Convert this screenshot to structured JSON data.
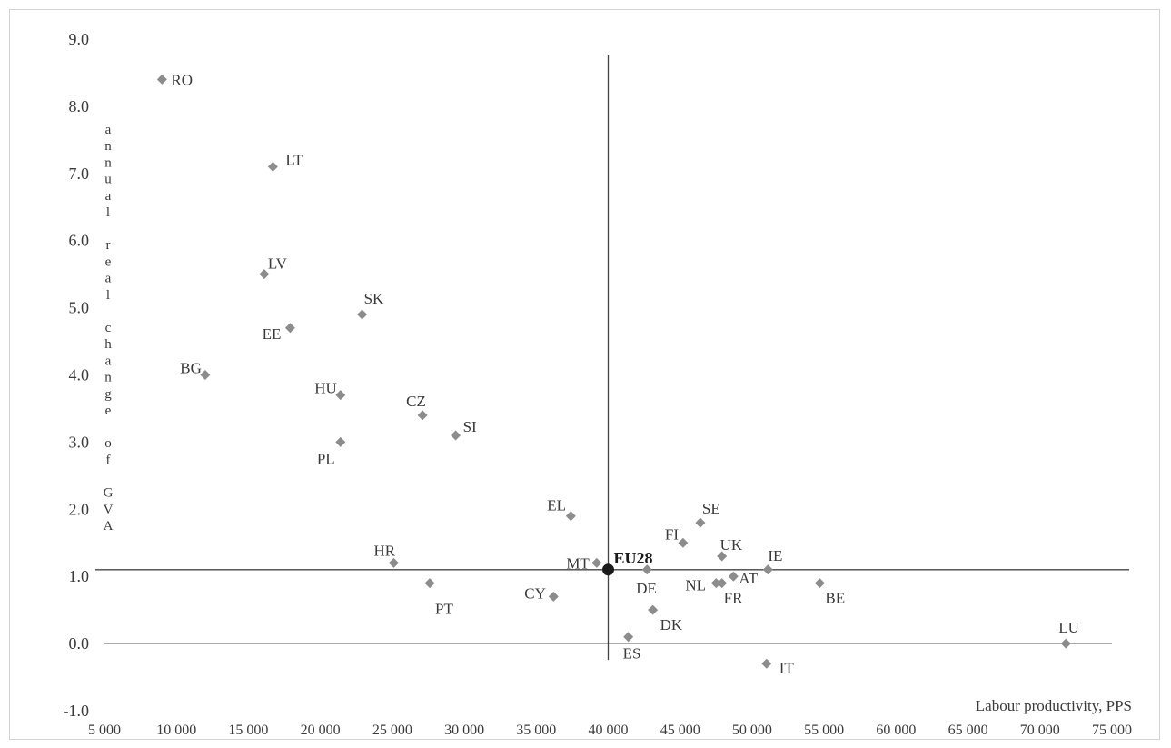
{
  "chart_data": {
    "type": "scatter",
    "title": "",
    "xlabel": "Labour productivity, PPS",
    "ylabel": "annual real change of GVA",
    "xlim": [
      5000,
      75000
    ],
    "ylim": [
      -1.0,
      9.0
    ],
    "xticks": [
      "5 000",
      "10 000",
      "15 000",
      "20 000",
      "25 000",
      "30 000",
      "35 000",
      "40 000",
      "45 000",
      "50 000",
      "55 000",
      "60 000",
      "65 000",
      "70 000",
      "75 000"
    ],
    "yticks": [
      "-1.0",
      "0.0",
      "1.0",
      "2.0",
      "3.0",
      "4.0",
      "5.0",
      "6.0",
      "7.0",
      "8.0",
      "9.0"
    ],
    "grid": false,
    "reference_point": {
      "label": "EU28",
      "x": 40000,
      "y": 1.1
    },
    "points": [
      {
        "label": "RO",
        "x": 9000,
        "y": 8.4
      },
      {
        "label": "LT",
        "x": 16700,
        "y": 7.1
      },
      {
        "label": "LV",
        "x": 16100,
        "y": 5.5
      },
      {
        "label": "EE",
        "x": 17900,
        "y": 4.7
      },
      {
        "label": "SK",
        "x": 22900,
        "y": 4.9
      },
      {
        "label": "BG",
        "x": 12000,
        "y": 4.0
      },
      {
        "label": "HU",
        "x": 21400,
        "y": 3.7
      },
      {
        "label": "CZ",
        "x": 27100,
        "y": 3.4
      },
      {
        "label": "PL",
        "x": 21400,
        "y": 3.0
      },
      {
        "label": "SI",
        "x": 29400,
        "y": 3.1
      },
      {
        "label": "EL",
        "x": 37400,
        "y": 1.9
      },
      {
        "label": "HR",
        "x": 25100,
        "y": 1.2
      },
      {
        "label": "MT",
        "x": 39200,
        "y": 1.2
      },
      {
        "label": "PT",
        "x": 27600,
        "y": 0.9
      },
      {
        "label": "CY",
        "x": 36200,
        "y": 0.7
      },
      {
        "label": "DE",
        "x": 42700,
        "y": 1.1
      },
      {
        "label": "DK",
        "x": 43100,
        "y": 0.5
      },
      {
        "label": "ES",
        "x": 41400,
        "y": 0.1
      },
      {
        "label": "FI",
        "x": 45200,
        "y": 1.5
      },
      {
        "label": "SE",
        "x": 46400,
        "y": 1.8
      },
      {
        "label": "UK",
        "x": 47900,
        "y": 1.3
      },
      {
        "label": "NL",
        "x": 47500,
        "y": 0.9
      },
      {
        "label": "FR",
        "x": 47900,
        "y": 0.9
      },
      {
        "label": "AT",
        "x": 48700,
        "y": 1.0
      },
      {
        "label": "IE",
        "x": 51100,
        "y": 1.1
      },
      {
        "label": "BE",
        "x": 54700,
        "y": 0.9
      },
      {
        "label": "IT",
        "x": 51000,
        "y": -0.3
      },
      {
        "label": "LU",
        "x": 71800,
        "y": 0.0
      }
    ],
    "colors": {
      "point": "#8c8c8c",
      "reference": "#1a1a1a",
      "axis": "#444444",
      "text": "#3a3a3a"
    }
  }
}
